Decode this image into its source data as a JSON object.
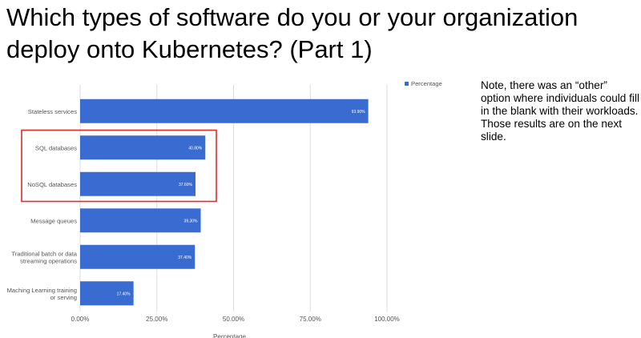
{
  "slide": {
    "title_line1": "Which types of software do you or your organization",
    "title_line2": "deploy onto Kubernetes? (Part 1)",
    "note": "Note, there was an “other” option where individuals could fill in the blank with their workloads. Those results are on the next slide."
  },
  "chart_data": {
    "type": "bar",
    "orientation": "horizontal",
    "categories": [
      [
        "Stateless services"
      ],
      [
        "SQL databases"
      ],
      [
        "NoSQL databases"
      ],
      [
        "Message queues"
      ],
      [
        "Traditional batch or data",
        "streaming operations"
      ],
      [
        "Maching Learning training",
        "or serving"
      ]
    ],
    "series": [
      {
        "name": "Percentage",
        "values": [
          93.9,
          40.8,
          37.6,
          39.3,
          37.4,
          17.4
        ],
        "labels": [
          "93.90%",
          "40.80%",
          "37.60%",
          "39.30%",
          "37.40%",
          "17.40%"
        ]
      }
    ],
    "xlabel": "Percentage",
    "ylabel": "",
    "xlim": [
      0,
      100
    ],
    "ticks": [
      0,
      25,
      50,
      75,
      100
    ],
    "tick_labels": [
      "0.00%",
      "25.00%",
      "50.00%",
      "75.00%",
      "100.00%"
    ],
    "grid": true,
    "legend": "top-right",
    "highlight": {
      "categories": [
        "SQL databases",
        "NoSQL databases"
      ],
      "color": "#e02b2b"
    },
    "colors": {
      "bar": "#3a6bd0",
      "grid": "#dddddd",
      "text": "#555555"
    }
  }
}
